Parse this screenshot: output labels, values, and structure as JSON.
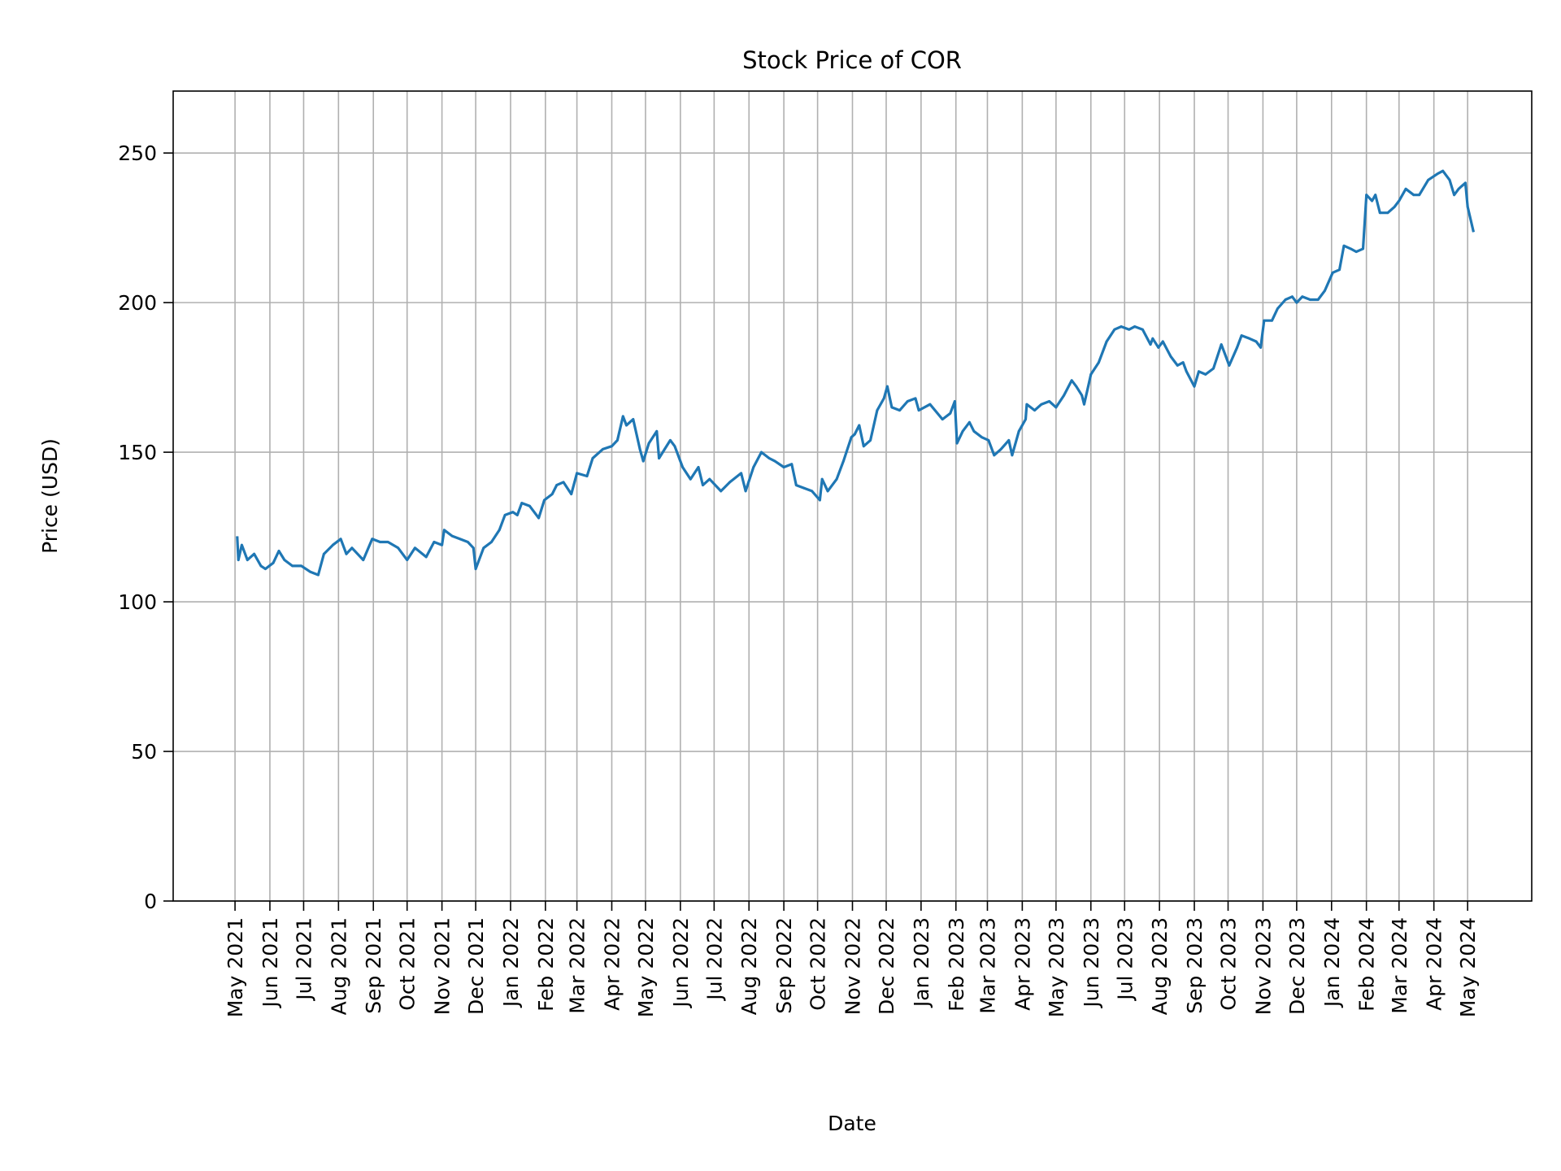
{
  "chart_data": {
    "type": "line",
    "title": "Stock Price of COR",
    "xlabel": "Date",
    "ylabel": "Price (USD)",
    "xlim": [
      "2021-03-07",
      "2024-06-27"
    ],
    "ylim": [
      0,
      270.7
    ],
    "grid": true,
    "line_color": "#1f77b4",
    "grid_color": "#b0b0b0",
    "y_ticks": [
      0,
      50,
      100,
      150,
      200,
      250
    ],
    "x_ticks": [
      {
        "date": "2021-05-01",
        "label": "May 2021"
      },
      {
        "date": "2021-06-01",
        "label": "Jun 2021"
      },
      {
        "date": "2021-07-01",
        "label": "Jul 2021"
      },
      {
        "date": "2021-08-01",
        "label": "Aug 2021"
      },
      {
        "date": "2021-09-01",
        "label": "Sep 2021"
      },
      {
        "date": "2021-10-01",
        "label": "Oct 2021"
      },
      {
        "date": "2021-11-01",
        "label": "Nov 2021"
      },
      {
        "date": "2021-12-01",
        "label": "Dec 2021"
      },
      {
        "date": "2022-01-01",
        "label": "Jan 2022"
      },
      {
        "date": "2022-02-01",
        "label": "Feb 2022"
      },
      {
        "date": "2022-03-01",
        "label": "Mar 2022"
      },
      {
        "date": "2022-04-01",
        "label": "Apr 2022"
      },
      {
        "date": "2022-05-01",
        "label": "May 2022"
      },
      {
        "date": "2022-06-01",
        "label": "Jun 2022"
      },
      {
        "date": "2022-07-01",
        "label": "Jul 2022"
      },
      {
        "date": "2022-08-01",
        "label": "Aug 2022"
      },
      {
        "date": "2022-09-01",
        "label": "Sep 2022"
      },
      {
        "date": "2022-10-01",
        "label": "Oct 2022"
      },
      {
        "date": "2022-11-01",
        "label": "Nov 2022"
      },
      {
        "date": "2022-12-01",
        "label": "Dec 2022"
      },
      {
        "date": "2023-01-01",
        "label": "Jan 2023"
      },
      {
        "date": "2023-02-01",
        "label": "Feb 2023"
      },
      {
        "date": "2023-03-01",
        "label": "Mar 2023"
      },
      {
        "date": "2023-04-01",
        "label": "Apr 2023"
      },
      {
        "date": "2023-05-01",
        "label": "May 2023"
      },
      {
        "date": "2023-06-01",
        "label": "Jun 2023"
      },
      {
        "date": "2023-07-01",
        "label": "Jul 2023"
      },
      {
        "date": "2023-08-01",
        "label": "Aug 2023"
      },
      {
        "date": "2023-09-01",
        "label": "Sep 2023"
      },
      {
        "date": "2023-10-01",
        "label": "Oct 2023"
      },
      {
        "date": "2023-11-01",
        "label": "Nov 2023"
      },
      {
        "date": "2023-12-01",
        "label": "Dec 2023"
      },
      {
        "date": "2024-01-01",
        "label": "Jan 2024"
      },
      {
        "date": "2024-02-01",
        "label": "Feb 2024"
      },
      {
        "date": "2024-03-01",
        "label": "Mar 2024"
      },
      {
        "date": "2024-04-01",
        "label": "Apr 2024"
      },
      {
        "date": "2024-05-01",
        "label": "May 2024"
      }
    ],
    "series": [
      {
        "x": [
          "2021-05-03",
          "2021-05-04",
          "2021-05-07",
          "2021-05-12",
          "2021-05-18",
          "2021-05-24",
          "2021-05-28",
          "2021-06-04",
          "2021-06-09",
          "2021-06-14",
          "2021-06-21",
          "2021-06-29",
          "2021-07-07",
          "2021-07-14",
          "2021-07-19",
          "2021-07-27",
          "2021-08-03",
          "2021-08-08",
          "2021-08-13",
          "2021-08-23",
          "2021-08-31",
          "2021-09-07",
          "2021-09-14",
          "2021-09-23",
          "2021-10-01",
          "2021-10-08",
          "2021-10-18",
          "2021-10-25",
          "2021-11-01",
          "2021-11-03",
          "2021-11-10",
          "2021-11-17",
          "2021-11-24",
          "2021-11-29",
          "2021-12-01",
          "2021-12-08",
          "2021-12-15",
          "2021-12-22",
          "2021-12-27",
          "2022-01-03",
          "2022-01-07",
          "2022-01-11",
          "2022-01-18",
          "2022-01-26",
          "2022-01-31",
          "2022-02-07",
          "2022-02-11",
          "2022-02-17",
          "2022-02-24",
          "2022-03-01",
          "2022-03-10",
          "2022-03-15",
          "2022-03-24",
          "2022-04-01",
          "2022-04-06",
          "2022-04-11",
          "2022-04-14",
          "2022-04-20",
          "2022-04-26",
          "2022-04-29",
          "2022-05-04",
          "2022-05-11",
          "2022-05-13",
          "2022-05-18",
          "2022-05-23",
          "2022-05-27",
          "2022-06-03",
          "2022-06-10",
          "2022-06-17",
          "2022-06-21",
          "2022-06-27",
          "2022-07-07",
          "2022-07-15",
          "2022-07-25",
          "2022-07-29",
          "2022-08-05",
          "2022-08-12",
          "2022-08-19",
          "2022-08-24",
          "2022-09-01",
          "2022-09-08",
          "2022-09-12",
          "2022-09-19",
          "2022-09-26",
          "2022-10-03",
          "2022-10-05",
          "2022-10-10",
          "2022-10-18",
          "2022-10-24",
          "2022-10-31",
          "2022-11-03",
          "2022-11-07",
          "2022-11-11",
          "2022-11-17",
          "2022-11-23",
          "2022-11-29",
          "2022-12-02",
          "2022-12-06",
          "2022-12-13",
          "2022-12-20",
          "2022-12-27",
          "2022-12-30",
          "2023-01-09",
          "2023-01-20",
          "2023-01-27",
          "2023-01-31",
          "2023-02-02",
          "2023-02-07",
          "2023-02-13",
          "2023-02-17",
          "2023-02-24",
          "2023-03-02",
          "2023-03-07",
          "2023-03-13",
          "2023-03-20",
          "2023-03-23",
          "2023-03-29",
          "2023-04-04",
          "2023-04-05",
          "2023-04-12",
          "2023-04-18",
          "2023-04-25",
          "2023-05-01",
          "2023-05-08",
          "2023-05-15",
          "2023-05-19",
          "2023-05-24",
          "2023-05-26",
          "2023-06-01",
          "2023-06-08",
          "2023-06-15",
          "2023-06-22",
          "2023-06-28",
          "2023-07-05",
          "2023-07-10",
          "2023-07-17",
          "2023-07-24",
          "2023-07-26",
          "2023-07-31",
          "2023-08-04",
          "2023-08-11",
          "2023-08-17",
          "2023-08-22",
          "2023-08-25",
          "2023-09-01",
          "2023-09-05",
          "2023-09-11",
          "2023-09-18",
          "2023-09-25",
          "2023-09-28",
          "2023-10-02",
          "2023-10-09",
          "2023-10-13",
          "2023-10-20",
          "2023-10-26",
          "2023-10-30",
          "2023-11-02",
          "2023-11-09",
          "2023-11-14",
          "2023-11-21",
          "2023-11-27",
          "2023-12-01",
          "2023-12-06",
          "2023-12-13",
          "2023-12-20",
          "2023-12-26",
          "2024-01-02",
          "2024-01-08",
          "2024-01-12",
          "2024-01-18",
          "2024-01-23",
          "2024-01-29",
          "2024-02-01",
          "2024-02-06",
          "2024-02-09",
          "2024-02-13",
          "2024-02-20",
          "2024-02-26",
          "2024-03-01",
          "2024-03-07",
          "2024-03-14",
          "2024-03-19",
          "2024-03-27",
          "2024-04-04",
          "2024-04-09",
          "2024-04-15",
          "2024-04-19",
          "2024-04-23",
          "2024-04-26",
          "2024-04-29",
          "2024-05-01",
          "2024-05-06"
        ],
        "y": [
          121.5,
          114,
          119,
          114,
          116,
          112,
          111,
          113,
          117,
          114,
          112,
          112,
          110,
          109,
          116,
          119,
          121,
          116,
          118,
          114,
          121,
          120,
          120,
          118,
          114,
          118,
          115,
          120,
          119,
          124,
          122,
          121,
          120,
          118,
          111,
          118,
          120,
          124,
          129,
          130,
          129,
          133,
          132,
          128,
          134,
          136,
          139,
          140,
          136,
          143,
          142,
          148,
          151,
          152,
          154,
          162,
          159,
          161,
          151,
          147,
          153,
          157,
          148,
          151,
          154,
          152,
          145,
          141,
          145,
          139,
          141,
          137,
          140,
          143,
          137,
          145,
          150,
          148,
          147,
          145,
          146,
          139,
          138,
          137,
          134,
          141,
          137,
          141,
          147,
          155,
          156,
          159,
          152,
          154,
          164,
          168,
          172,
          165,
          164,
          167,
          168,
          164,
          166,
          161,
          163,
          167,
          153,
          157,
          160,
          157,
          155,
          154,
          149,
          151,
          154,
          149,
          157,
          161,
          166,
          164,
          166,
          167,
          165,
          169,
          174,
          172,
          169,
          166,
          176,
          180,
          187,
          191,
          192,
          191,
          192,
          191,
          186,
          188,
          185,
          187,
          182,
          179,
          180,
          177,
          172,
          177,
          176,
          178,
          186,
          183,
          179,
          185,
          189,
          188,
          187,
          185,
          194,
          194,
          198,
          201,
          202,
          200,
          202,
          201,
          201,
          204,
          210,
          211,
          219,
          218,
          217,
          218,
          236,
          234,
          236,
          230,
          230,
          232,
          234,
          238,
          236,
          236,
          241,
          243,
          244,
          241,
          236,
          238,
          239,
          240,
          232,
          224
        ]
      }
    ]
  }
}
